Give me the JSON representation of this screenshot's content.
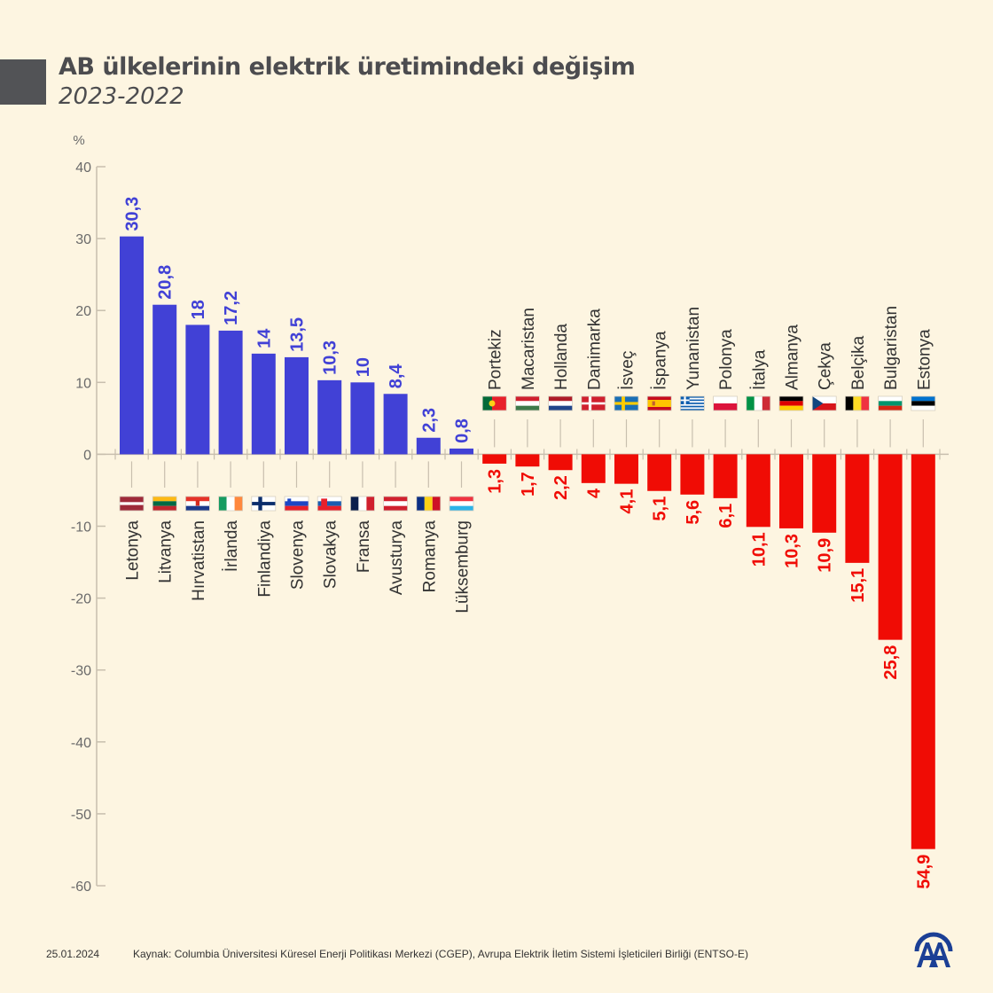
{
  "header": {
    "title": "AB ülkelerinin elektrik üretimindeki değişim",
    "subtitle": "2023-2022"
  },
  "footer": {
    "date": "25.01.2024",
    "source": "Kaynak: Columbia Üniversitesi Küresel Enerji Politikası Merkezi (CGEP), Avrupa Elektrik İletim Sistemi İşleticileri Birliği (ENTSO-E)",
    "logo": "anadolu-agency-logo"
  },
  "colors": {
    "positive": "#4141d6",
    "negative": "#f00c05",
    "background": "#fdf5e1",
    "axis": "#c8bfae",
    "tick_text": "#6a6a6a",
    "title": "#4c4c4f"
  },
  "chart_data": {
    "type": "bar",
    "title": "AB ülkelerinin elektrik üretimindeki değişim",
    "subtitle": "2023-2022",
    "ylabel": "%",
    "xlabel": "",
    "ylim": [
      -60,
      40
    ],
    "yticks": [
      40,
      30,
      20,
      10,
      0,
      -10,
      -20,
      -30,
      -40,
      -50,
      -60
    ],
    "ytick_labels": [
      "40",
      "30",
      "20",
      "10",
      "0",
      "-10",
      "-20",
      "-30",
      "-40",
      "-50",
      "-60"
    ],
    "grid": false,
    "legend": "none",
    "categories": [
      "Letonya",
      "Litvanya",
      "Hırvatistan",
      "İrlanda",
      "Finlandiya",
      "Slovenya",
      "Slovakya",
      "Fransa",
      "Avusturya",
      "Romanya",
      "Lüksemburg",
      "Portekiz",
      "Macaristan",
      "Hollanda",
      "Danimarka",
      "İsveç",
      "İspanya",
      "Yunanistan",
      "Polonya",
      "İtalya",
      "Almanya",
      "Çekya",
      "Belçika",
      "Bulgaristan",
      "Estonya"
    ],
    "values": [
      30.3,
      20.8,
      18,
      17.2,
      14,
      13.5,
      10.3,
      10,
      8.4,
      2.3,
      0.8,
      -1.3,
      -1.7,
      -2.2,
      -4,
      -4.1,
      -5.1,
      -5.6,
      -6.1,
      -10.1,
      -10.3,
      -10.9,
      -15.1,
      -25.8,
      -54.9
    ],
    "data_labels": [
      "30,3",
      "20,8",
      "18",
      "17,2",
      "14",
      "13,5",
      "10,3",
      "10",
      "8,4",
      "2,3",
      "0,8",
      "1,3",
      "1,7",
      "2,2",
      "4",
      "4,1",
      "5,1",
      "5,6",
      "6,1",
      "10,1",
      "10,3",
      "10,9",
      "15,1",
      "25,8",
      "54,9"
    ],
    "flags": [
      "latvia",
      "lithuania",
      "croatia",
      "ireland",
      "finland",
      "slovenia",
      "slovakia",
      "france",
      "austria",
      "romania",
      "luxembourg",
      "portugal",
      "hungary",
      "netherlands",
      "denmark",
      "sweden",
      "spain",
      "greece",
      "poland",
      "italy",
      "germany",
      "czechia",
      "belgium",
      "bulgaria",
      "estonia"
    ]
  }
}
